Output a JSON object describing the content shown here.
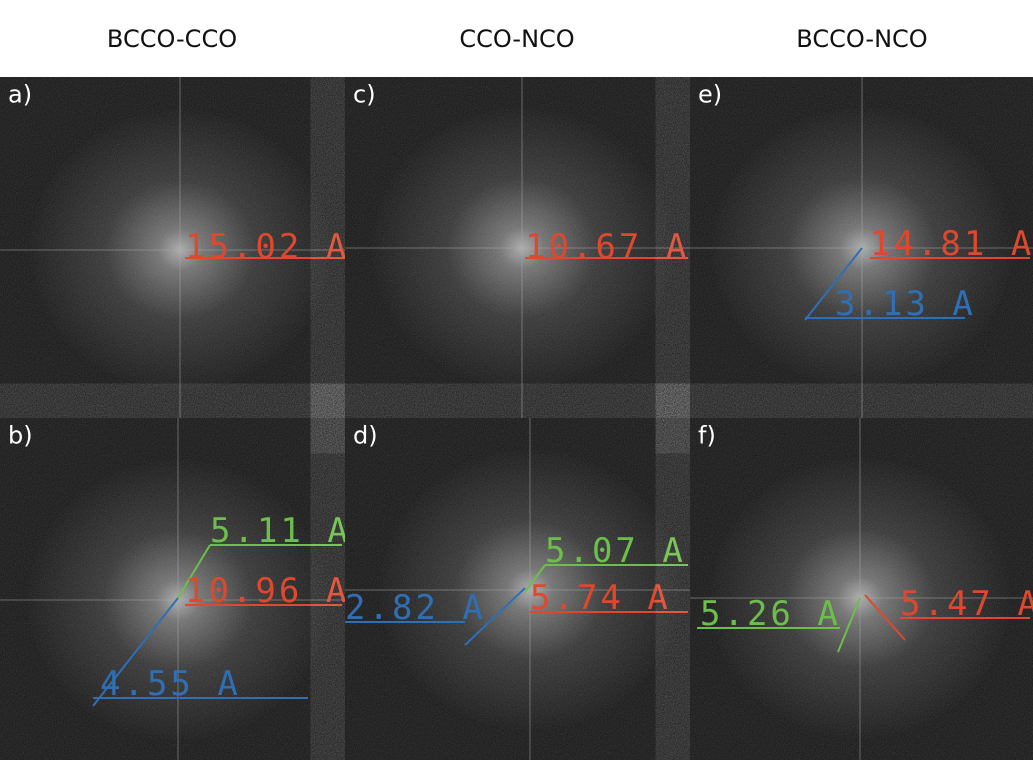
{
  "columns": [
    "BCCO-CCO",
    "CCO-NCO",
    "BCCO-NCO"
  ],
  "panels": [
    {
      "label": "a)",
      "annotations": [
        {
          "text": "15.02 A",
          "color": "#e0482e"
        }
      ]
    },
    {
      "label": "b)",
      "annotations": [
        {
          "text": "5.11 A",
          "color": "#6cc04a"
        },
        {
          "text": "10.96 A",
          "color": "#e0482e"
        },
        {
          "text": "4.55 A",
          "color": "#2f6fb5"
        }
      ]
    },
    {
      "label": "c)",
      "annotations": [
        {
          "text": "10.67 A",
          "color": "#e0482e"
        }
      ]
    },
    {
      "label": "d)",
      "annotations": [
        {
          "text": "5.07 A",
          "color": "#6cc04a"
        },
        {
          "text": "5.74 A",
          "color": "#e0482e"
        },
        {
          "text": "2.82 A",
          "color": "#2f6fb5"
        }
      ]
    },
    {
      "label": "e)",
      "annotations": [
        {
          "text": "14.81 A",
          "color": "#e0482e"
        },
        {
          "text": "3.13 A",
          "color": "#2f6fb5"
        }
      ]
    },
    {
      "label": "f)",
      "annotations": [
        {
          "text": "5.26 A",
          "color": "#6cc04a"
        },
        {
          "text": "5.47 A",
          "color": "#e0482e"
        }
      ]
    }
  ]
}
